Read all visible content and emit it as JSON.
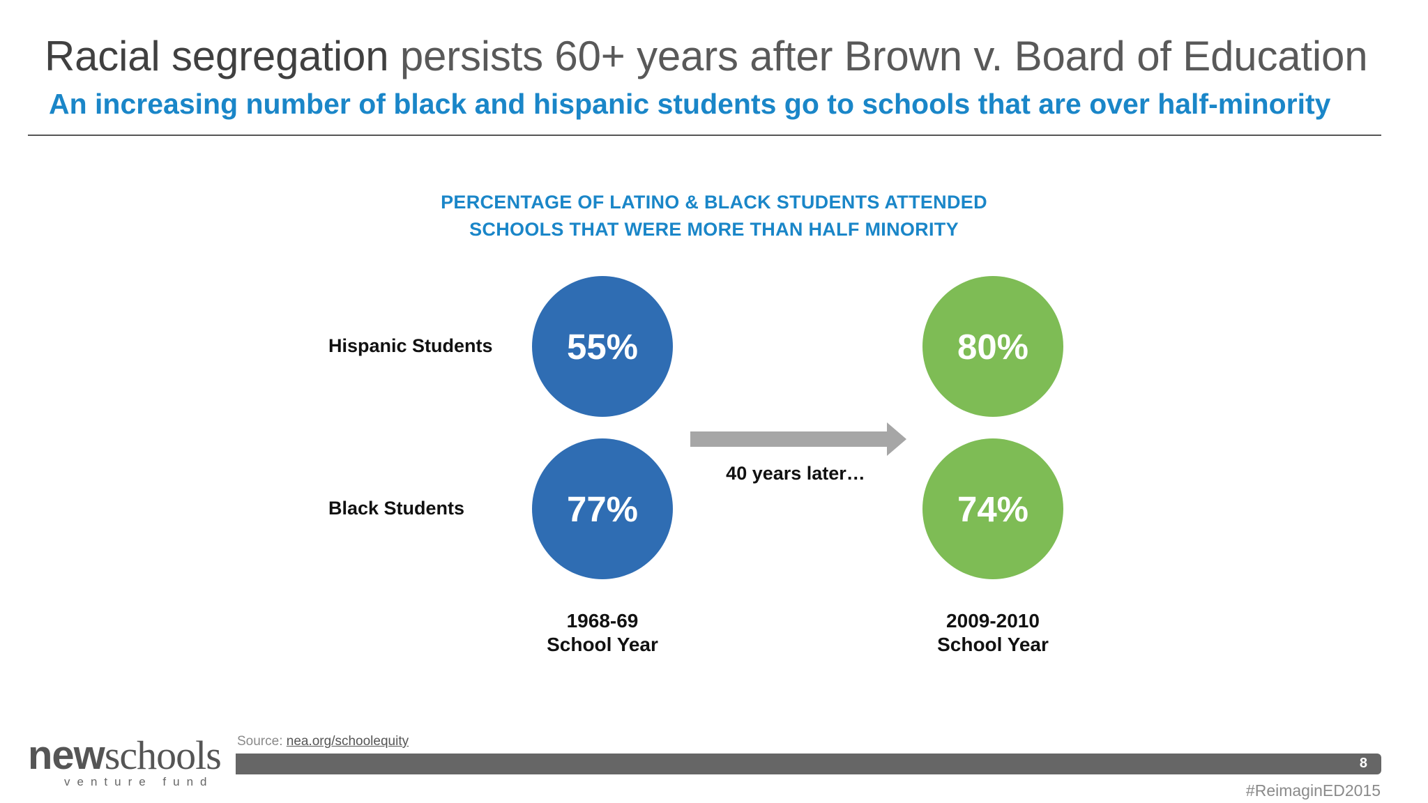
{
  "title_dark": "Racial segregation",
  "title_rest": " persists 60+ years after Brown v. Board of Education",
  "subtitle": "An increasing number of black and hispanic students go to schools that are over half-minority",
  "chart": {
    "heading_line1": "PERCENTAGE OF LATINO & BLACK STUDENTS ATTENDED",
    "heading_line2": "SCHOOLS THAT WERE MORE THAN HALF MINORITY",
    "rows": [
      {
        "label": "Hispanic Students",
        "before": "55%",
        "after": "80%"
      },
      {
        "label": "Black Students",
        "before": "77%",
        "after": "74%"
      }
    ],
    "arrow_caption": "40 years later…",
    "year_before_line1": "1968-69",
    "year_before_line2": "School Year",
    "year_after_line1": "2009-2010",
    "year_after_line2": "School Year",
    "colors": {
      "before": "#2f6db3",
      "after": "#7ebc55",
      "accent": "#1a86c8"
    }
  },
  "chart_data": {
    "type": "table",
    "title": "PERCENTAGE OF LATINO & BLACK STUDENTS ATTENDED SCHOOLS THAT WERE MORE THAN HALF MINORITY",
    "categories": [
      "1968-69 School Year",
      "2009-2010 School Year"
    ],
    "series": [
      {
        "name": "Hispanic Students",
        "values": [
          55,
          80
        ]
      },
      {
        "name": "Black Students",
        "values": [
          77,
          74
        ]
      }
    ],
    "unit": "%"
  },
  "footer": {
    "source_label": "Source: ",
    "source_link": "nea.org/schoolequity ",
    "logo_bold": "new",
    "logo_rest": "schools",
    "logo_sub": "venture fund",
    "page_number": "8",
    "hashtag": "#ReimaginED2015"
  }
}
